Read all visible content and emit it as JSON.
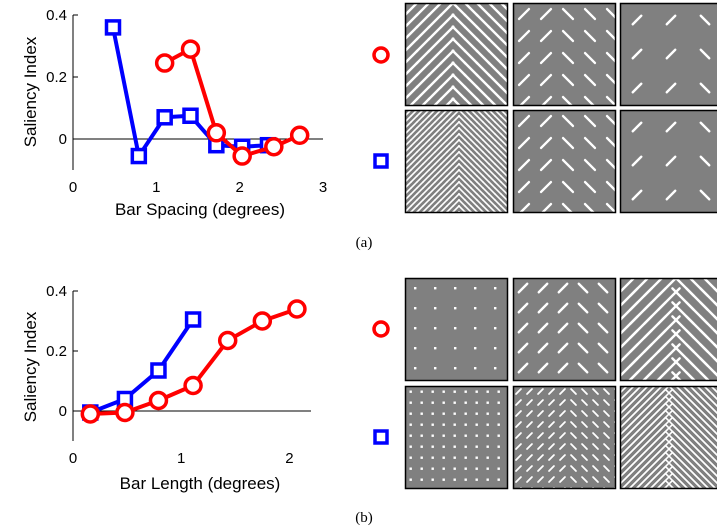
{
  "chart_data": [
    {
      "type": "line",
      "panel": "(a)",
      "xlabel": "Bar Spacing (degrees)",
      "ylabel": "Saliency Index",
      "xlim": [
        0,
        3
      ],
      "ylim": [
        -0.1,
        0.4
      ],
      "xticks": [
        "0",
        "1",
        "2",
        "3"
      ],
      "yticks": [
        "0",
        "0.2",
        "0.4"
      ],
      "grid": false,
      "series": [
        {
          "marker": "square",
          "color": "#0000ff",
          "x": [
            0.48,
            0.79,
            1.1,
            1.41,
            1.72,
            2.03,
            2.34
          ],
          "y": [
            0.36,
            -0.055,
            0.07,
            0.075,
            -0.02,
            -0.025,
            -0.02
          ]
        },
        {
          "marker": "circle",
          "color": "#ff0000",
          "x": [
            1.1,
            1.41,
            1.72,
            2.03,
            2.41,
            2.72
          ],
          "y": [
            0.245,
            0.29,
            0.02,
            -0.055,
            -0.025,
            0.012
          ]
        }
      ]
    },
    {
      "type": "line",
      "panel": "(b)",
      "xlabel": "Bar Length (degrees)",
      "ylabel": "Saliency Index",
      "xlim": [
        0,
        2.2
      ],
      "ylim": [
        -0.1,
        0.4
      ],
      "xticks": [
        "0",
        "1",
        "2"
      ],
      "yticks": [
        "0",
        "0.2",
        "0.4"
      ],
      "grid": false,
      "series": [
        {
          "marker": "square",
          "color": "#0000ff",
          "x": [
            0.16,
            0.48,
            0.79,
            1.11
          ],
          "y": [
            -0.005,
            0.04,
            0.135,
            0.305
          ]
        },
        {
          "marker": "circle",
          "color": "#ff0000",
          "x": [
            0.16,
            0.48,
            0.79,
            1.11,
            1.43,
            1.75,
            2.07
          ],
          "y": [
            -0.01,
            -0.005,
            0.035,
            0.085,
            0.235,
            0.3,
            0.34
          ]
        }
      ]
    }
  ],
  "captions": [
    "(a)",
    "(b)"
  ],
  "stimuli": [
    {
      "row": "circle",
      "tiles": [
        "dense-chevron",
        "medium-chevron",
        "sparse-chevron"
      ]
    },
    {
      "row": "square",
      "tiles": [
        "very-dense-chevron",
        "medium-chevron",
        "sparse-chevron"
      ]
    },
    {
      "row": "circle",
      "tiles": [
        "dot-grid",
        "short-bar-chevron",
        "long-bar-chevron"
      ]
    },
    {
      "row": "square",
      "tiles": [
        "dense-dot-grid",
        "dense-short-bar",
        "dense-long-bar-chevron"
      ]
    }
  ],
  "colors": {
    "circle": "#ff0000",
    "square": "#0000ff",
    "tile_bg": "#808080",
    "bar": "#ffffff"
  }
}
